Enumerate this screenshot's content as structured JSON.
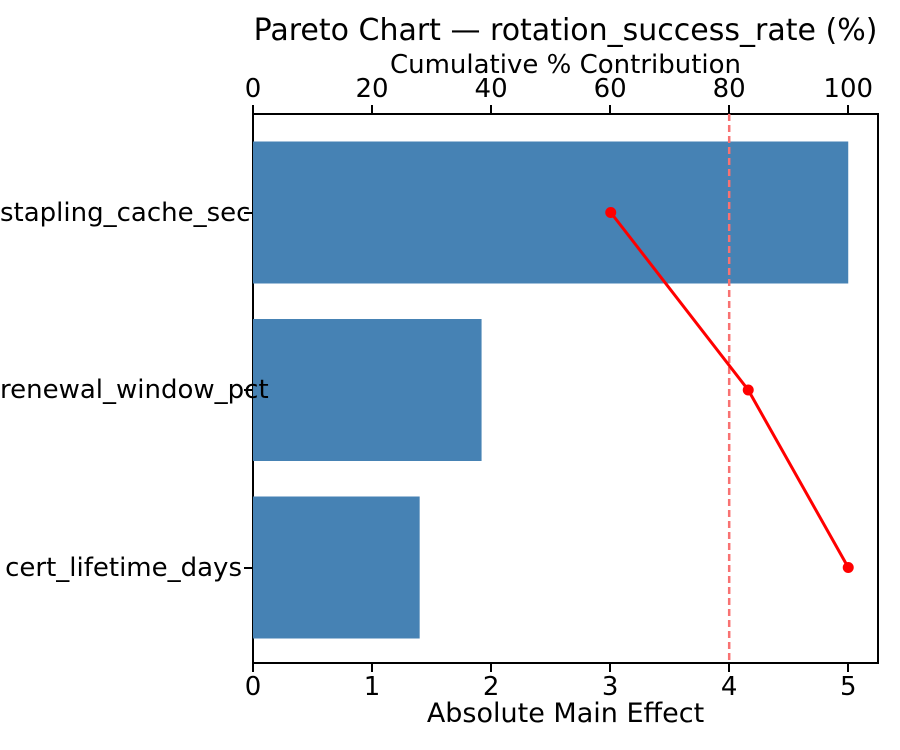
{
  "chart_data": {
    "type": "bar",
    "subtype": "pareto",
    "orientation": "horizontal",
    "title": "Pareto Chart — rotation_success_rate (%)",
    "top_axis_label": "Cumulative % Contribution",
    "bottom_axis_label": "Absolute Main Effect",
    "categories": [
      "stapling_cache_sec",
      "renewal_window_pct",
      "cert_lifetime_days"
    ],
    "bar_values": [
      5.0,
      1.92,
      1.4
    ],
    "cumulative_pct": [
      60.1,
      83.2,
      100.0
    ],
    "bottom_ticks": [
      0,
      1,
      2,
      3,
      4,
      5
    ],
    "top_ticks": [
      0,
      20,
      40,
      60,
      80,
      100
    ],
    "xlim_bottom": [
      0,
      5.25
    ],
    "xlim_top": [
      0,
      105
    ],
    "threshold_pct": 80,
    "grid": false,
    "legend": false,
    "colors": {
      "bar": "#4682B4",
      "line": "#FF0000",
      "marker": "#FF0000",
      "threshold_line": "#F87272",
      "spine": "#000000",
      "text": "#000000",
      "background": "#FFFFFF"
    }
  }
}
